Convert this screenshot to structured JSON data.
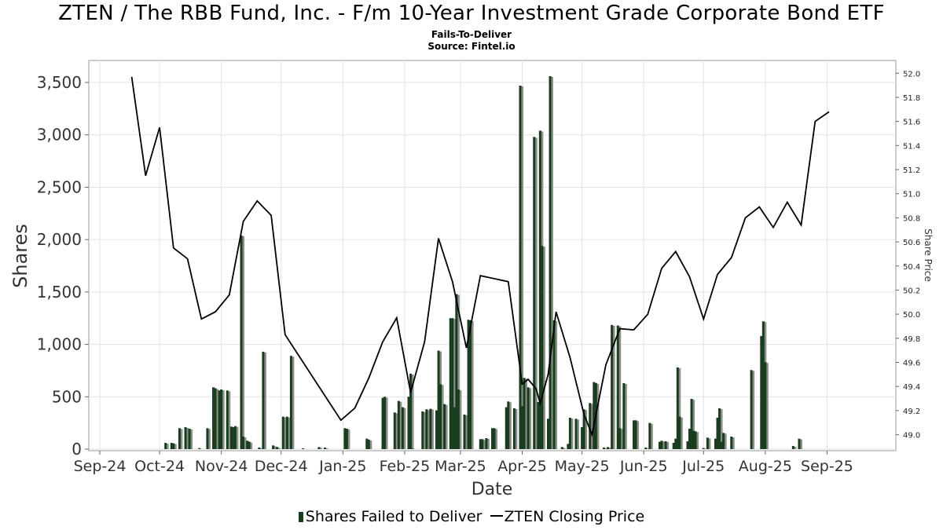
{
  "title": "ZTEN / The RBB Fund, Inc. - F/m 10-Year Investment Grade Corporate Bond ETF",
  "subtitle": "Fails-To-Deliver",
  "source": "Source: Fintel.io",
  "colors": {
    "bar": "#1b3d1f",
    "bar_shadow": "#8a8f8a",
    "line": "#000000",
    "grid": "#dddddd"
  },
  "chart_data": {
    "type": "bar",
    "xlabel": "Date",
    "ylabel": "Shares",
    "y2label": "Share Price",
    "x_ticks": [
      "Sep-24",
      "Oct-24",
      "Nov-24",
      "Dec-24",
      "Jan-25",
      "Feb-25",
      "Mar-25",
      "Apr-25",
      "May-25",
      "Jun-25",
      "Jul-25",
      "Aug-25",
      "Sep-25"
    ],
    "y_ticks": [
      "0",
      "500",
      "1,000",
      "1,500",
      "2,000",
      "2,500",
      "3,000",
      "3,500"
    ],
    "y2_ticks": [
      "49.0",
      "49.2",
      "49.4",
      "49.6",
      "49.8",
      "50.0",
      "50.2",
      "50.4",
      "50.6",
      "50.8",
      "51.0",
      "51.2",
      "51.4",
      "51.6",
      "51.8",
      "52.0"
    ],
    "ylim": [
      0,
      3650
    ],
    "y2lim": [
      48.88,
      52.08
    ],
    "xlim": [
      "2024-09-01",
      "2025-09-30"
    ],
    "grid": true,
    "legend_position": "bottom",
    "series": [
      {
        "name": "Shares Failed to Deliver",
        "type": "bar",
        "axis": "left",
        "points": [
          [
            "2024-10-04",
            60
          ],
          [
            "2024-10-07",
            60
          ],
          [
            "2024-10-08",
            55
          ],
          [
            "2024-10-11",
            200
          ],
          [
            "2024-10-14",
            210
          ],
          [
            "2024-10-16",
            195
          ],
          [
            "2024-10-21",
            10
          ],
          [
            "2024-10-25",
            200
          ],
          [
            "2024-10-28",
            590
          ],
          [
            "2024-10-29",
            580
          ],
          [
            "2024-10-31",
            560
          ],
          [
            "2024-11-01",
            570
          ],
          [
            "2024-11-04",
            560
          ],
          [
            "2024-11-06",
            215
          ],
          [
            "2024-11-07",
            210
          ],
          [
            "2024-11-08",
            220
          ],
          [
            "2024-11-11",
            2040
          ],
          [
            "2024-11-12",
            120
          ],
          [
            "2024-11-14",
            80
          ],
          [
            "2024-11-15",
            70
          ],
          [
            "2024-11-20",
            15
          ],
          [
            "2024-11-22",
            930
          ],
          [
            "2024-11-27",
            35
          ],
          [
            "2024-11-29",
            20
          ],
          [
            "2024-12-02",
            310
          ],
          [
            "2024-12-04",
            310
          ],
          [
            "2024-12-06",
            890
          ],
          [
            "2024-12-12",
            8
          ],
          [
            "2024-12-20",
            20
          ],
          [
            "2024-12-23",
            15
          ],
          [
            "2025-01-02",
            200
          ],
          [
            "2025-01-03",
            195
          ],
          [
            "2025-01-13",
            100
          ],
          [
            "2025-01-14",
            90
          ],
          [
            "2025-01-21",
            490
          ],
          [
            "2025-01-22",
            500
          ],
          [
            "2025-01-27",
            350
          ],
          [
            "2025-01-29",
            460
          ],
          [
            "2025-01-31",
            400
          ],
          [
            "2025-02-03",
            500
          ],
          [
            "2025-02-04",
            720
          ],
          [
            "2025-02-05",
            5
          ],
          [
            "2025-02-10",
            360
          ],
          [
            "2025-02-12",
            380
          ],
          [
            "2025-02-14",
            385
          ],
          [
            "2025-02-17",
            370
          ],
          [
            "2025-02-18",
            940
          ],
          [
            "2025-02-19",
            620
          ],
          [
            "2025-02-21",
            430
          ],
          [
            "2025-02-24",
            1250
          ],
          [
            "2025-02-25",
            1250
          ],
          [
            "2025-02-26",
            400
          ],
          [
            "2025-02-27",
            1480
          ],
          [
            "2025-02-28",
            570
          ],
          [
            "2025-03-03",
            330
          ],
          [
            "2025-03-05",
            1235
          ],
          [
            "2025-03-06",
            1230
          ],
          [
            "2025-03-11",
            95
          ],
          [
            "2025-03-12",
            95
          ],
          [
            "2025-03-14",
            105
          ],
          [
            "2025-03-17",
            200
          ],
          [
            "2025-03-18",
            200
          ],
          [
            "2025-03-24",
            400
          ],
          [
            "2025-03-25",
            455
          ],
          [
            "2025-03-28",
            390
          ],
          [
            "2025-03-31",
            3470
          ],
          [
            "2025-04-01",
            410
          ],
          [
            "2025-04-02",
            680
          ],
          [
            "2025-04-04",
            590
          ],
          [
            "2025-04-07",
            2980
          ],
          [
            "2025-04-09",
            450
          ],
          [
            "2025-04-10",
            3040
          ],
          [
            "2025-04-11",
            1940
          ],
          [
            "2025-04-14",
            290
          ],
          [
            "2025-04-15",
            3560
          ],
          [
            "2025-04-17",
            1230
          ],
          [
            "2025-04-21",
            20
          ],
          [
            "2025-04-24",
            50
          ],
          [
            "2025-04-25",
            300
          ],
          [
            "2025-04-28",
            290
          ],
          [
            "2025-05-01",
            210
          ],
          [
            "2025-05-02",
            380
          ],
          [
            "2025-05-05",
            440
          ],
          [
            "2025-05-07",
            640
          ],
          [
            "2025-05-08",
            630
          ],
          [
            "2025-05-12",
            15
          ],
          [
            "2025-05-14",
            20
          ],
          [
            "2025-05-16",
            1185
          ],
          [
            "2025-05-19",
            1180
          ],
          [
            "2025-05-20",
            200
          ],
          [
            "2025-05-22",
            630
          ],
          [
            "2025-05-27",
            275
          ],
          [
            "2025-05-28",
            275
          ],
          [
            "2025-06-02",
            15
          ],
          [
            "2025-06-04",
            250
          ],
          [
            "2025-06-09",
            70
          ],
          [
            "2025-06-10",
            80
          ],
          [
            "2025-06-12",
            75
          ],
          [
            "2025-06-16",
            60
          ],
          [
            "2025-06-17",
            100
          ],
          [
            "2025-06-18",
            780
          ],
          [
            "2025-06-19",
            310
          ],
          [
            "2025-06-23",
            75
          ],
          [
            "2025-06-24",
            195
          ],
          [
            "2025-06-25",
            480
          ],
          [
            "2025-06-26",
            175
          ],
          [
            "2025-06-27",
            170
          ],
          [
            "2025-07-01",
            10
          ],
          [
            "2025-07-03",
            110
          ],
          [
            "2025-07-07",
            100
          ],
          [
            "2025-07-08",
            300
          ],
          [
            "2025-07-09",
            390
          ],
          [
            "2025-07-10",
            70
          ],
          [
            "2025-07-11",
            155
          ],
          [
            "2025-07-15",
            120
          ],
          [
            "2025-07-25",
            755
          ],
          [
            "2025-07-30",
            1080
          ],
          [
            "2025-07-31",
            1220
          ],
          [
            "2025-08-01",
            830
          ],
          [
            "2025-08-15",
            30
          ],
          [
            "2025-08-18",
            100
          ]
        ]
      },
      {
        "name": "ZTEN Closing Price",
        "type": "line",
        "axis": "right",
        "points": [
          [
            "2024-09-17",
            51.97
          ],
          [
            "2024-09-24",
            51.15
          ],
          [
            "2024-10-01",
            51.55
          ],
          [
            "2024-10-08",
            50.55
          ],
          [
            "2024-10-15",
            50.46
          ],
          [
            "2024-10-22",
            49.96
          ],
          [
            "2024-10-29",
            50.02
          ],
          [
            "2024-11-05",
            50.16
          ],
          [
            "2024-11-12",
            50.77
          ],
          [
            "2024-11-19",
            50.94
          ],
          [
            "2024-11-26",
            50.82
          ],
          [
            "2024-12-03",
            49.83
          ],
          [
            "2024-12-31",
            49.12
          ],
          [
            "2025-01-07",
            49.22
          ],
          [
            "2025-01-14",
            49.47
          ],
          [
            "2025-01-21",
            49.77
          ],
          [
            "2025-01-28",
            49.97
          ],
          [
            "2025-02-04",
            49.35
          ],
          [
            "2025-02-11",
            49.77
          ],
          [
            "2025-02-18",
            50.63
          ],
          [
            "2025-02-25",
            50.27
          ],
          [
            "2025-03-04",
            49.72
          ],
          [
            "2025-03-11",
            50.32
          ],
          [
            "2025-03-25",
            50.27
          ],
          [
            "2025-04-01",
            49.42
          ],
          [
            "2025-04-04",
            49.46
          ],
          [
            "2025-04-08",
            49.38
          ],
          [
            "2025-04-10",
            49.26
          ],
          [
            "2025-04-14",
            49.5
          ],
          [
            "2025-04-18",
            50.02
          ],
          [
            "2025-04-25",
            49.64
          ],
          [
            "2025-05-02",
            49.17
          ],
          [
            "2025-05-06",
            49.0
          ],
          [
            "2025-05-13",
            49.58
          ],
          [
            "2025-05-20",
            49.88
          ],
          [
            "2025-05-27",
            49.87
          ],
          [
            "2025-06-03",
            50.0
          ],
          [
            "2025-06-10",
            50.38
          ],
          [
            "2025-06-17",
            50.52
          ],
          [
            "2025-06-24",
            50.31
          ],
          [
            "2025-07-01",
            49.96
          ],
          [
            "2025-07-08",
            50.33
          ],
          [
            "2025-07-15",
            50.47
          ],
          [
            "2025-07-22",
            50.8
          ],
          [
            "2025-07-29",
            50.89
          ],
          [
            "2025-08-05",
            50.72
          ],
          [
            "2025-08-12",
            50.93
          ],
          [
            "2025-08-19",
            50.74
          ],
          [
            "2025-08-26",
            51.6
          ],
          [
            "2025-09-02",
            51.68
          ]
        ]
      }
    ]
  }
}
